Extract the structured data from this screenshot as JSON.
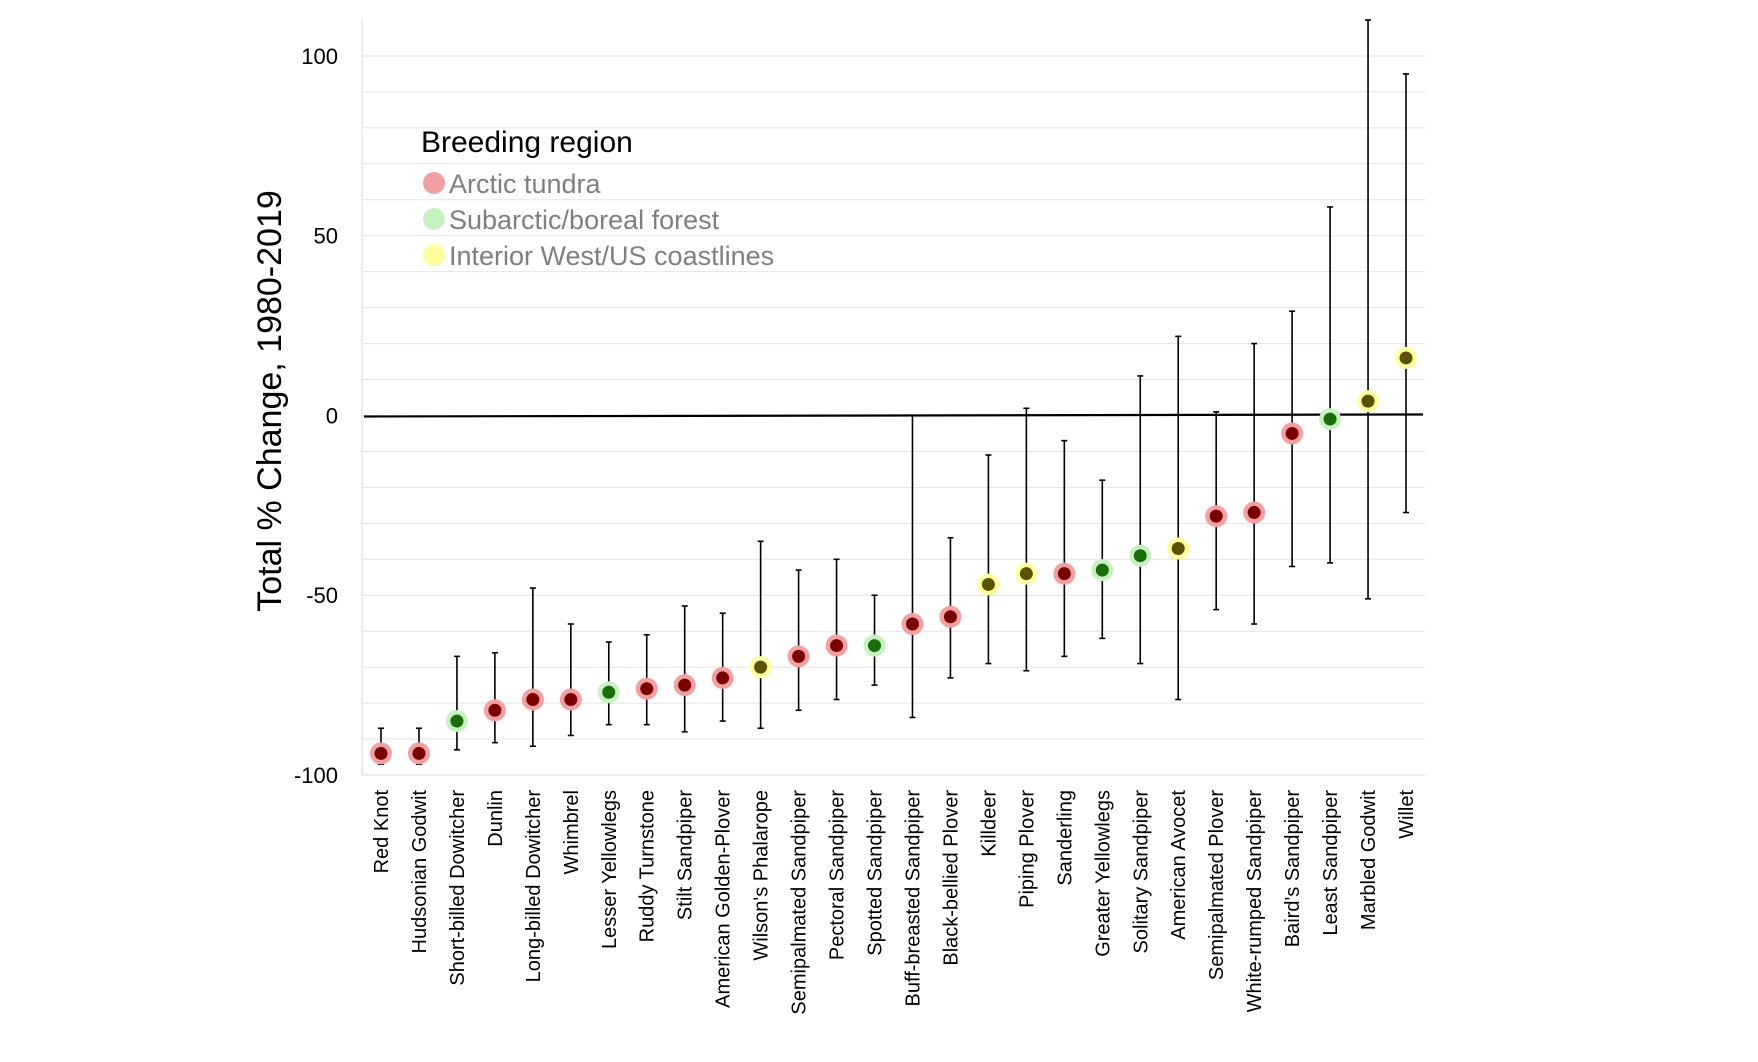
{
  "chart_data": {
    "type": "scatter",
    "title": "",
    "xlabel": "",
    "ylabel": "Total % Change, 1980-2019",
    "ylim": [
      -100,
      110
    ],
    "yticks": [
      100,
      50,
      0,
      -50,
      -100
    ],
    "grid": true,
    "legend": {
      "title": "Breeding region",
      "position": "top-left",
      "entries": [
        {
          "key": "arctic",
          "label": "Arctic tundra",
          "halo": "#f4a0a0",
          "core": "#7a0000"
        },
        {
          "key": "subarctic",
          "label": "Subarctic/boreal forest",
          "halo": "#c6f2c0",
          "core": "#1a6e0a"
        },
        {
          "key": "interior",
          "label": "Interior West/US coastlines",
          "halo": "#ffff9c",
          "core": "#5a5200"
        }
      ]
    },
    "points": [
      {
        "species": "Red Knot",
        "value": -94,
        "low": -97,
        "high": -87,
        "region": "arctic"
      },
      {
        "species": "Hudsonian Godwit",
        "value": -94,
        "low": -97,
        "high": -87,
        "region": "arctic"
      },
      {
        "species": "Short-billed Dowitcher",
        "value": -85,
        "low": -93,
        "high": -67,
        "region": "subarctic"
      },
      {
        "species": "Dunlin",
        "value": -82,
        "low": -91,
        "high": -66,
        "region": "arctic"
      },
      {
        "species": "Long-billed Dowitcher",
        "value": -79,
        "low": -92,
        "high": -48,
        "region": "arctic"
      },
      {
        "species": "Whimbrel",
        "value": -79,
        "low": -89,
        "high": -58,
        "region": "arctic"
      },
      {
        "species": "Lesser Yellowlegs",
        "value": -77,
        "low": -86,
        "high": -63,
        "region": "subarctic"
      },
      {
        "species": "Ruddy Turnstone",
        "value": -76,
        "low": -86,
        "high": -61,
        "region": "arctic"
      },
      {
        "species": "Stilt Sandpiper",
        "value": -75,
        "low": -88,
        "high": -53,
        "region": "arctic"
      },
      {
        "species": "American Golden-Plover",
        "value": -73,
        "low": -85,
        "high": -55,
        "region": "arctic"
      },
      {
        "species": "Wilson's Phalarope",
        "value": -70,
        "low": -87,
        "high": -35,
        "region": "interior"
      },
      {
        "species": "Semipalmated Sandpiper",
        "value": -67,
        "low": -82,
        "high": -43,
        "region": "arctic"
      },
      {
        "species": "Pectoral Sandpiper",
        "value": -64,
        "low": -79,
        "high": -40,
        "region": "arctic"
      },
      {
        "species": "Spotted Sandpiper",
        "value": -64,
        "low": -75,
        "high": -50,
        "region": "subarctic"
      },
      {
        "species": "Buff-breasted Sandpiper",
        "value": -58,
        "low": -84,
        "high": 0,
        "region": "arctic"
      },
      {
        "species": "Black-bellied Plover",
        "value": -56,
        "low": -73,
        "high": -34,
        "region": "arctic"
      },
      {
        "species": "Killdeer",
        "value": -47,
        "low": -69,
        "high": -11,
        "region": "interior"
      },
      {
        "species": "Piping Plover",
        "value": -44,
        "low": -71,
        "high": 2,
        "region": "interior"
      },
      {
        "species": "Sanderling",
        "value": -44,
        "low": -67,
        "high": -7,
        "region": "arctic"
      },
      {
        "species": "Greater Yellowlegs",
        "value": -43,
        "low": -62,
        "high": -18,
        "region": "subarctic"
      },
      {
        "species": "Solitary Sandpiper",
        "value": -39,
        "low": -69,
        "high": 11,
        "region": "subarctic"
      },
      {
        "species": "American Avocet",
        "value": -37,
        "low": -79,
        "high": 22,
        "region": "interior"
      },
      {
        "species": "Semipalmated Plover",
        "value": -28,
        "low": -54,
        "high": 1,
        "region": "arctic"
      },
      {
        "species": "White-rumped Sandpiper",
        "value": -27,
        "low": -58,
        "high": 20,
        "region": "arctic"
      },
      {
        "species": "Baird's Sandpiper",
        "value": -5,
        "low": -42,
        "high": 29,
        "region": "arctic"
      },
      {
        "species": "Least Sandpiper",
        "value": -1,
        "low": -41,
        "high": 58,
        "region": "subarctic"
      },
      {
        "species": "Marbled Godwit",
        "value": 4,
        "low": -51,
        "high": 110,
        "region": "interior"
      },
      {
        "species": "Willet",
        "value": 16,
        "low": -27,
        "high": 95,
        "region": "interior"
      }
    ]
  }
}
